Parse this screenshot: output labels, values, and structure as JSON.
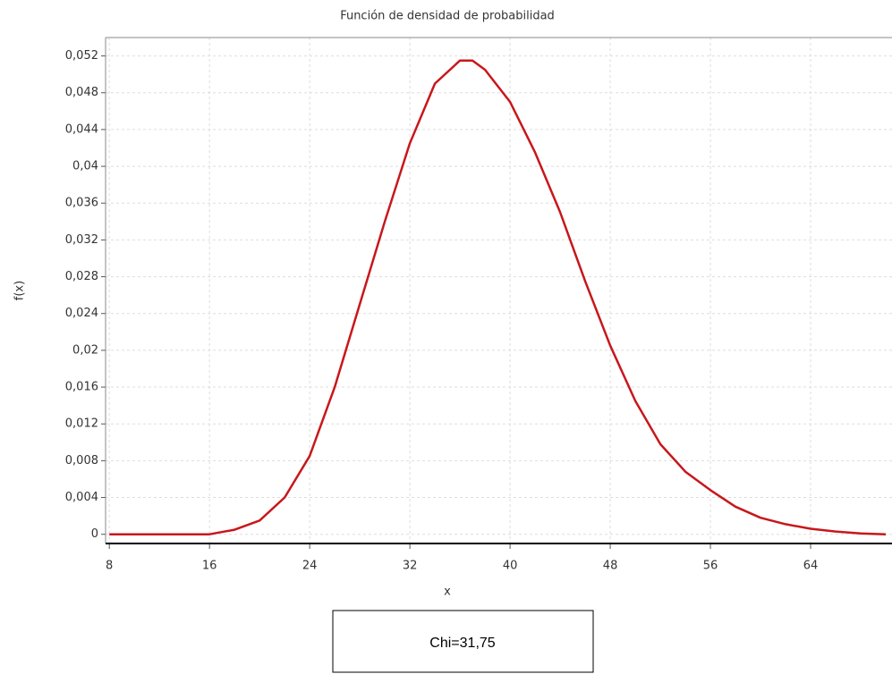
{
  "chart_data": {
    "type": "line",
    "title": "Función de densidad de probabilidad",
    "xlabel": "x",
    "ylabel": "f(x)",
    "annotation": "Chi=31,75",
    "color": "#c8171b",
    "grid": true,
    "x": [
      8,
      16,
      18,
      20,
      22,
      24,
      26,
      28,
      30,
      32,
      34,
      36,
      37,
      38,
      40,
      42,
      44,
      46,
      48,
      50,
      52,
      54,
      56,
      58,
      60,
      62,
      64,
      66,
      68,
      70
    ],
    "values": [
      0,
      0,
      0.0005,
      0.0015,
      0.004,
      0.0085,
      0.016,
      0.025,
      0.034,
      0.0425,
      0.049,
      0.0515,
      0.0515,
      0.0505,
      0.047,
      0.0415,
      0.035,
      0.0275,
      0.0205,
      0.0145,
      0.0098,
      0.0068,
      0.0048,
      0.003,
      0.0018,
      0.0011,
      0.0006,
      0.0003,
      0.0001,
      0
    ],
    "xlim": [
      7.7,
      70.5
    ],
    "ylim": [
      -0.001,
      0.054
    ],
    "xticks": [
      8,
      16,
      24,
      32,
      40,
      48,
      56,
      64
    ],
    "yticks": [
      0,
      {
        "value": 0.004,
        "label": "0,004"
      },
      {
        "value": 0.008,
        "label": "0,008"
      },
      {
        "value": 0.012,
        "label": "0,012"
      },
      {
        "value": 0.016,
        "label": "0,016"
      },
      {
        "value": 0.02,
        "label": "0,02"
      },
      {
        "value": 0.024,
        "label": "0,024"
      },
      {
        "value": 0.028,
        "label": "0,028"
      },
      {
        "value": 0.032,
        "label": "0,032"
      },
      {
        "value": 0.036,
        "label": "0,036"
      },
      {
        "value": 0.04,
        "label": "0,04"
      },
      {
        "value": 0.044,
        "label": "0,044"
      },
      {
        "value": 0.048,
        "label": "0,048"
      },
      {
        "value": 0.052,
        "label": "0,052"
      }
    ]
  }
}
